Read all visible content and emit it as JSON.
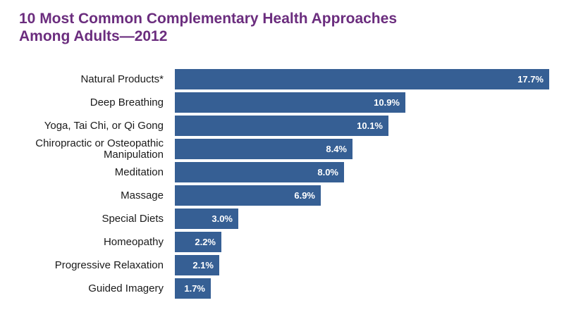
{
  "chart_data": {
    "type": "bar",
    "orientation": "horizontal",
    "title_lines": [
      "10 Most Common Complementary Health Approaches",
      "Among Adults—2012"
    ],
    "xlabel": "",
    "ylabel": "",
    "categories": [
      [
        "Natural Products*"
      ],
      [
        "Deep Breathing"
      ],
      [
        "Yoga, Tai Chi, or Qi Gong"
      ],
      [
        "Chiropractic or Osteopathic",
        "Manipulation"
      ],
      [
        "Meditation"
      ],
      [
        "Massage"
      ],
      [
        "Special Diets"
      ],
      [
        "Homeopathy"
      ],
      [
        "Progressive Relaxation"
      ],
      [
        "Guided Imagery"
      ]
    ],
    "values": [
      17.7,
      10.9,
      10.1,
      8.4,
      8.0,
      6.9,
      3.0,
      2.2,
      2.1,
      1.7
    ],
    "value_labels": [
      "17.7%",
      "10.9%",
      "10.1%",
      "8.4%",
      "8.0%",
      "6.9%",
      "3.0%",
      "2.2%",
      "2.1%",
      "1.7%"
    ],
    "xlim": [
      0,
      17.7
    ],
    "grid": false,
    "axes_visible": false,
    "bar_color": "#365f94",
    "value_label_color": "#ffffff",
    "title_color": "#6b2d7e"
  }
}
